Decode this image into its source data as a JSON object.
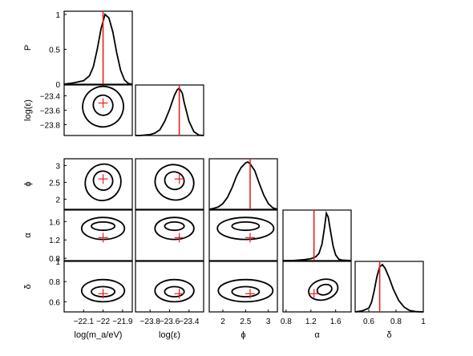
{
  "chart_data": {
    "type": "corner",
    "params": [
      {
        "key": "logm",
        "label": "log(m_a/eV)",
        "ticks": [
          -22.1,
          -22,
          -21.9
        ],
        "tick_labels": [
          "−22.1",
          "−22",
          "−21.9"
        ],
        "range": [
          -22.2,
          -21.85
        ],
        "truth": -22.0
      },
      {
        "key": "logeps",
        "label": "log(ε)",
        "ticks": [
          -23.8,
          -23.6,
          -23.4
        ],
        "tick_labels": [
          "−23.8",
          "−23.6",
          "−23.4"
        ],
        "range": [
          -23.95,
          -23.25
        ],
        "truth": -23.5
      },
      {
        "key": "phi",
        "label": "ϕ",
        "ticks": [
          2,
          2.5,
          3
        ],
        "tick_labels": [
          "2",
          "2.5",
          "3"
        ],
        "range": [
          1.7,
          3.2
        ],
        "truth": 2.6
      },
      {
        "key": "alpha",
        "label": "α",
        "ticks": [
          0.8,
          1.2,
          1.6
        ],
        "tick_labels": [
          "0.8",
          "1.2",
          "1.6"
        ],
        "range": [
          0.75,
          1.85
        ],
        "truth": 1.25
      },
      {
        "key": "delta",
        "label": "δ",
        "ticks": [
          0.6,
          0.8,
          1
        ],
        "tick_labels": [
          "0.6",
          "0.8",
          "1"
        ],
        "range": [
          0.5,
          1.0
        ],
        "truth": 0.68
      }
    ],
    "top_ylabel": "P",
    "top_yticks": [
      0,
      0.5,
      1
    ],
    "top_ytick_labels": [
      "0",
      "0.5",
      "1"
    ],
    "marginals": [
      {
        "param": "logm",
        "x": [
          -22.2,
          -22.15,
          -22.1,
          -22.07,
          -22.05,
          -22.03,
          -22.01,
          -21.99,
          -21.97,
          -21.95,
          -21.93,
          -21.91,
          -21.89,
          -21.87,
          -21.85
        ],
        "p": [
          0.0,
          0.02,
          0.05,
          0.12,
          0.25,
          0.5,
          0.8,
          1.0,
          0.95,
          0.75,
          0.45,
          0.2,
          0.06,
          0.01,
          0.0
        ]
      },
      {
        "param": "logeps",
        "x": [
          -23.95,
          -23.9,
          -23.85,
          -23.8,
          -23.75,
          -23.7,
          -23.65,
          -23.6,
          -23.55,
          -23.52,
          -23.5,
          -23.47,
          -23.45,
          -23.4,
          -23.35,
          -23.3,
          -23.25
        ],
        "p": [
          0.0,
          0.0,
          0.01,
          0.02,
          0.05,
          0.12,
          0.3,
          0.55,
          0.85,
          0.97,
          1.0,
          0.9,
          0.7,
          0.3,
          0.08,
          0.01,
          0.0
        ]
      },
      {
        "param": "phi",
        "x": [
          1.7,
          1.8,
          1.9,
          2.0,
          2.1,
          2.2,
          2.3,
          2.4,
          2.5,
          2.55,
          2.6,
          2.7,
          2.8,
          2.9,
          3.0,
          3.1,
          3.2
        ],
        "p": [
          0.0,
          0.02,
          0.05,
          0.12,
          0.25,
          0.45,
          0.7,
          0.88,
          0.98,
          1.0,
          0.96,
          0.82,
          0.55,
          0.3,
          0.12,
          0.03,
          0.0
        ]
      },
      {
        "param": "alpha",
        "x": [
          0.75,
          0.9,
          1.0,
          1.1,
          1.2,
          1.28,
          1.33,
          1.38,
          1.42,
          1.45,
          1.48,
          1.52,
          1.56,
          1.6,
          1.65,
          1.7,
          1.85
        ],
        "p": [
          0.0,
          0.0,
          0.01,
          0.02,
          0.04,
          0.08,
          0.15,
          0.35,
          0.7,
          1.0,
          0.92,
          0.6,
          0.3,
          0.12,
          0.03,
          0.01,
          0.0
        ]
      },
      {
        "param": "delta",
        "x": [
          0.5,
          0.55,
          0.6,
          0.62,
          0.64,
          0.66,
          0.68,
          0.7,
          0.72,
          0.75,
          0.78,
          0.82,
          0.86,
          0.9,
          0.95,
          1.0
        ],
        "p": [
          0.0,
          0.02,
          0.08,
          0.2,
          0.45,
          0.75,
          0.95,
          1.0,
          0.92,
          0.72,
          0.48,
          0.24,
          0.1,
          0.03,
          0.005,
          0.0
        ]
      }
    ],
    "joints": [
      {
        "row": 1,
        "col": 0,
        "inner": {
          "cx": -22.0,
          "cy": -23.53,
          "rx": 0.05,
          "ry": 0.14,
          "rot": -20
        },
        "outer": {
          "cx": -22.0,
          "cy": -23.55,
          "rx": 0.105,
          "ry": 0.28,
          "rot": -25
        }
      },
      {
        "row": 2,
        "col": 0,
        "inner": {
          "cx": -22.0,
          "cy": 2.55,
          "rx": 0.05,
          "ry": 0.28,
          "rot": 35
        },
        "outer": {
          "cx": -22.0,
          "cy": 2.5,
          "rx": 0.09,
          "ry": 0.55,
          "rot": 35
        }
      },
      {
        "row": 2,
        "col": 1,
        "inner": {
          "cx": -23.55,
          "cy": 2.55,
          "rx": 0.1,
          "ry": 0.26,
          "rot": 15
        },
        "outer": {
          "cx": -23.55,
          "cy": 2.5,
          "rx": 0.2,
          "ry": 0.52,
          "rot": 15
        }
      },
      {
        "row": 3,
        "col": 0,
        "inner": {
          "cx": -22.0,
          "cy": 1.5,
          "rx": 0.06,
          "ry": 0.09,
          "rot": 0
        },
        "outer": {
          "cx": -22.0,
          "cy": 1.45,
          "rx": 0.11,
          "ry": 0.24,
          "rot": 0
        }
      },
      {
        "row": 3,
        "col": 1,
        "inner": {
          "cx": -23.55,
          "cy": 1.5,
          "rx": 0.1,
          "ry": 0.09,
          "rot": 0
        },
        "outer": {
          "cx": -23.55,
          "cy": 1.45,
          "rx": 0.2,
          "ry": 0.24,
          "rot": 0
        }
      },
      {
        "row": 3,
        "col": 2,
        "inner": {
          "cx": 2.5,
          "cy": 1.5,
          "rx": 0.3,
          "ry": 0.09,
          "rot": 0
        },
        "outer": {
          "cx": 2.5,
          "cy": 1.45,
          "rx": 0.62,
          "ry": 0.24,
          "rot": 0
        }
      },
      {
        "row": 4,
        "col": 0,
        "inner": {
          "cx": -22.0,
          "cy": 0.7,
          "rx": 0.06,
          "ry": 0.05,
          "rot": 0
        },
        "outer": {
          "cx": -22.0,
          "cy": 0.71,
          "rx": 0.11,
          "ry": 0.11,
          "rot": 0
        }
      },
      {
        "row": 4,
        "col": 1,
        "inner": {
          "cx": -23.55,
          "cy": 0.7,
          "rx": 0.1,
          "ry": 0.05,
          "rot": 0
        },
        "outer": {
          "cx": -23.55,
          "cy": 0.71,
          "rx": 0.2,
          "ry": 0.11,
          "rot": 0
        }
      },
      {
        "row": 4,
        "col": 2,
        "inner": {
          "cx": 2.5,
          "cy": 0.7,
          "rx": 0.3,
          "ry": 0.05,
          "rot": 0
        },
        "outer": {
          "cx": 2.5,
          "cy": 0.71,
          "rx": 0.6,
          "ry": 0.11,
          "rot": 0
        }
      },
      {
        "row": 4,
        "col": 3,
        "inner": {
          "cx": 1.42,
          "cy": 0.72,
          "rx": 0.12,
          "ry": 0.05,
          "rot": -15
        },
        "outer": {
          "cx": 1.4,
          "cy": 0.72,
          "rx": 0.24,
          "ry": 0.1,
          "rot": -15
        }
      }
    ],
    "colors": {
      "contour": "#000000",
      "truth": "#e8211b",
      "axes": "#000000"
    }
  }
}
